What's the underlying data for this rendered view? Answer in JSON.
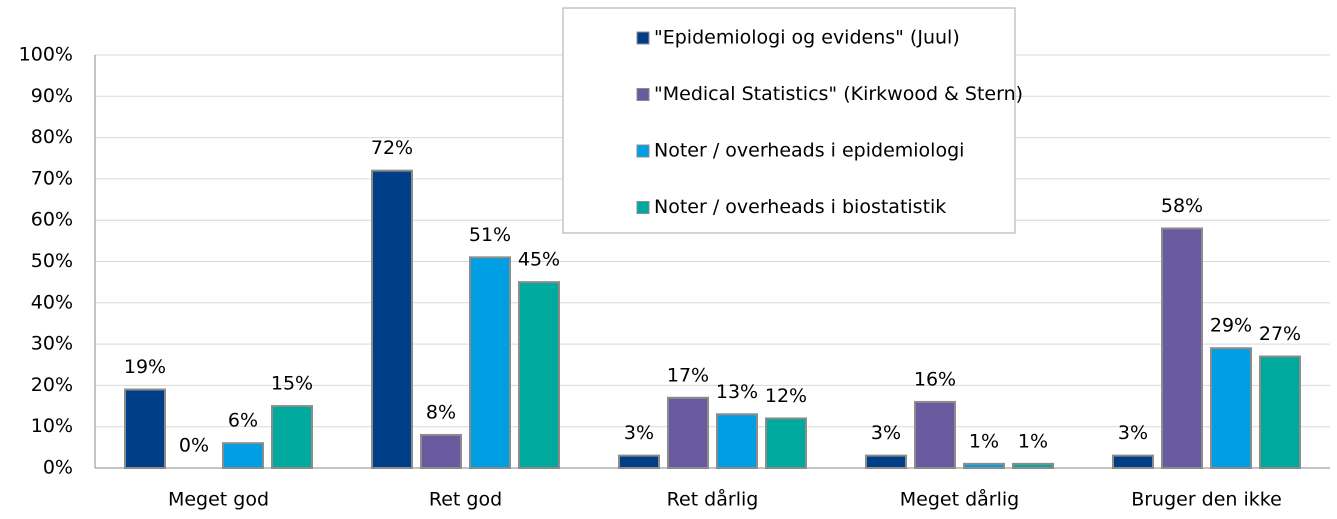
{
  "chart_data": {
    "type": "bar",
    "categories": [
      "Meget god",
      "Ret god",
      "Ret dårlig",
      "Meget dårlig",
      "Bruger den ikke"
    ],
    "series": [
      {
        "name": "\"Epidemiologi og evidens\" (Juul)",
        "color": "#003f87",
        "values": [
          19,
          72,
          3,
          3,
          3
        ],
        "value_labels": [
          "19%",
          "72%",
          "3%",
          "3%",
          "3%"
        ]
      },
      {
        "name": "\"Medical Statistics\" (Kirkwood & Stern)",
        "color": "#6a5aa0",
        "values": [
          0,
          8,
          17,
          16,
          58
        ],
        "value_labels": [
          "0%",
          "8%",
          "17%",
          "16%",
          "58%"
        ]
      },
      {
        "name": "Noter / overheads i epidemiologi",
        "color": "#009fe3",
        "values": [
          6,
          51,
          13,
          1,
          29
        ],
        "value_labels": [
          "6%",
          "51%",
          "13%",
          "1%",
          "29%"
        ]
      },
      {
        "name": "Noter / overheads i biostatistik",
        "color": "#00a99d",
        "values": [
          15,
          45,
          12,
          1,
          27
        ],
        "value_labels": [
          "15%",
          "45%",
          "12%",
          "1%",
          "27%"
        ]
      }
    ],
    "ylim": [
      0,
      100
    ],
    "yticks": [
      {
        "value": 0,
        "label": "0%"
      },
      {
        "value": 10,
        "label": "10%"
      },
      {
        "value": 20,
        "label": "20%"
      },
      {
        "value": 30,
        "label": "30%"
      },
      {
        "value": 40,
        "label": "40%"
      },
      {
        "value": 50,
        "label": "50%"
      },
      {
        "value": 60,
        "label": "60%"
      },
      {
        "value": 70,
        "label": "70%"
      },
      {
        "value": 80,
        "label": "80%"
      },
      {
        "value": 90,
        "label": "90%"
      },
      {
        "value": 100,
        "label": "100%"
      }
    ],
    "grid": true,
    "legend": "top-center"
  }
}
